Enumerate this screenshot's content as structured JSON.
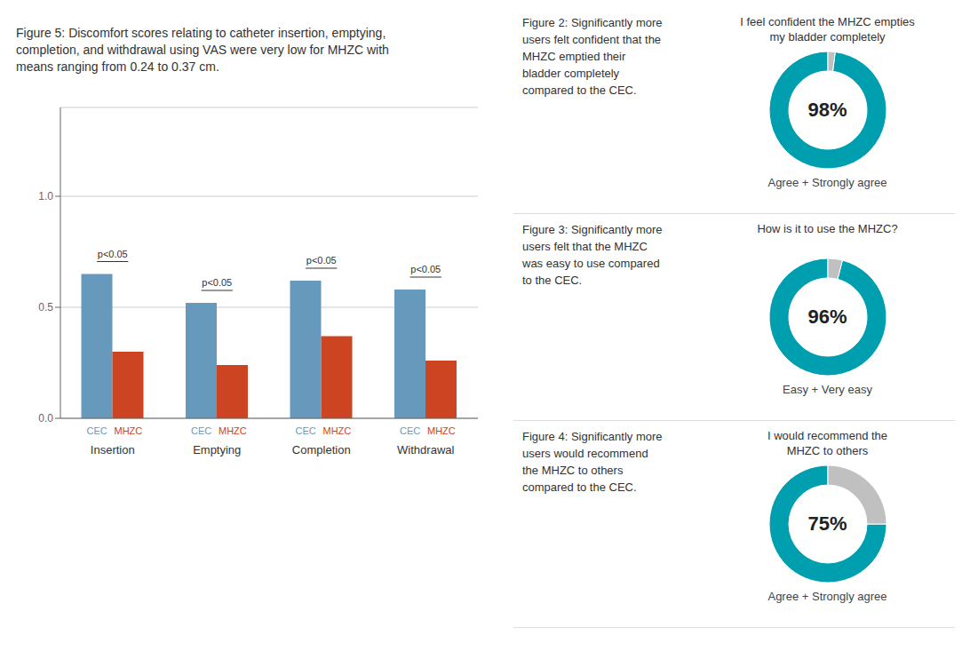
{
  "chart_data": [
    {
      "type": "bar",
      "title": "Figure 5: Discomfort scores relating to catheter insertion, emptying,\ncompletion, and withdrawal using VAS were very low for MHZC with\nmeans ranging from 0.24 to 0.37 cm.",
      "categories": [
        "Insertion",
        "Emptying",
        "Completion",
        "Withdrawal"
      ],
      "series": [
        {
          "name": "CEC",
          "color": "#6699bb",
          "values": [
            0.65,
            0.52,
            0.62,
            0.58
          ]
        },
        {
          "name": "MHZC",
          "color": "#cc4422",
          "values": [
            0.3,
            0.24,
            0.37,
            0.26
          ]
        }
      ],
      "ylim": [
        0,
        1.4
      ],
      "yticks": [
        {
          "value": 0,
          "label": "0.0"
        },
        0.5,
        {
          "value": 1,
          "label": "1.0"
        }
      ],
      "grid": true,
      "annotations": [
        "p<0.05",
        "p<0.05",
        "p<0.05",
        "p<0.05"
      ]
    },
    {
      "type": "pie",
      "title": "I feel confident the MHZC empties\nmy bladder completely",
      "subtitle": "Agree + Strongly agree",
      "annotations": [
        "Figure 2: Significantly more\nusers felt confident that the\nMHZC emptied their\nbladder completely\ncompared to the CEC."
      ],
      "values": [
        98,
        2
      ],
      "colors": [
        "#009faf",
        "#c0c0c0"
      ],
      "data_labels": true,
      "value_labels": [
        "98%",
        null
      ]
    },
    {
      "type": "pie",
      "title": "How is it to use the MHZC?",
      "subtitle": "Easy + Very easy",
      "annotations": [
        "Figure 3: Significantly more\nusers felt that the MHZC\nwas easy to use compared\nto the CEC."
      ],
      "values": [
        96,
        4
      ],
      "colors": [
        "#009faf",
        "#c0c0c0"
      ],
      "data_labels": true,
      "value_labels": [
        "96%",
        null
      ]
    },
    {
      "type": "pie",
      "title": "I would recommend the\nMHZC to others",
      "subtitle": "Agree + Strongly agree",
      "annotations": [
        "Figure 4: Significantly more\nusers would recommend\nthe MHZC to others\ncompared to the CEC."
      ],
      "values": [
        75,
        25
      ],
      "colors": [
        "#009faf",
        "#c0c0c0"
      ],
      "data_labels": true,
      "value_labels": [
        "75%",
        null
      ]
    }
  ]
}
